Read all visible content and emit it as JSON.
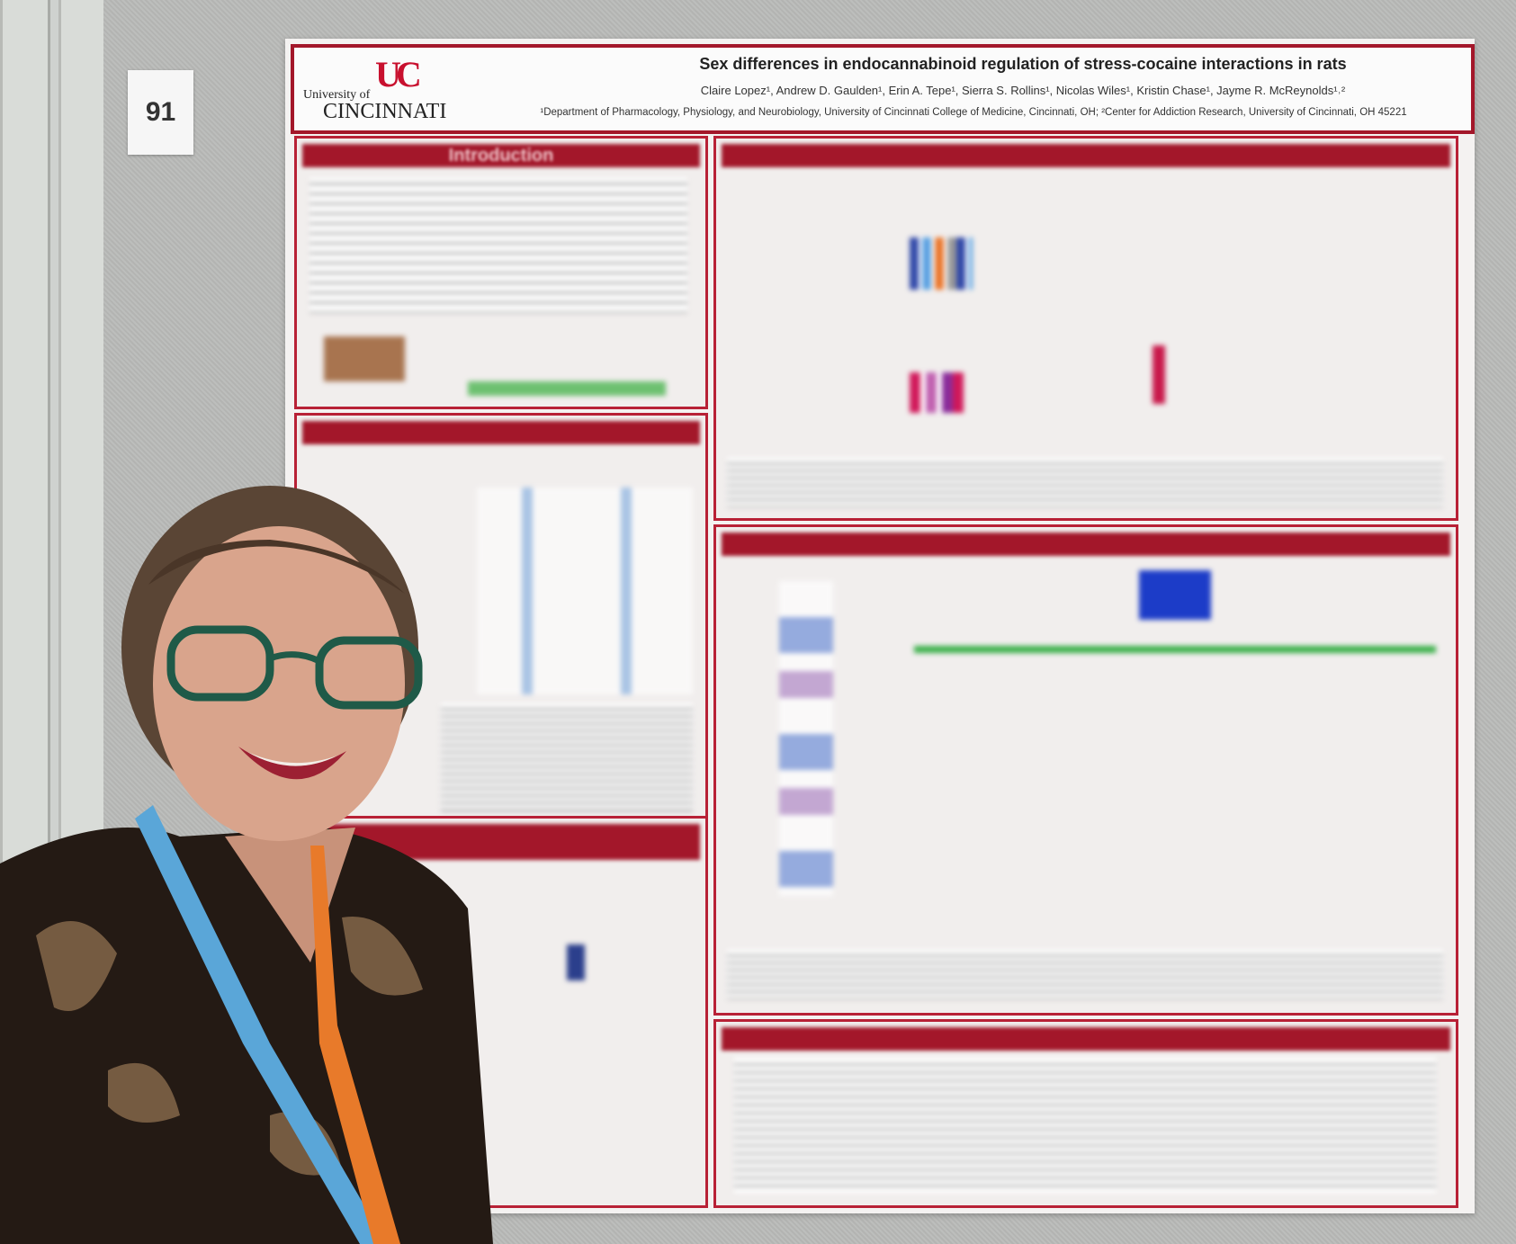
{
  "board_number": "91",
  "poster": {
    "logo": {
      "mark": "UC",
      "line1": "University of",
      "line2": "CINCINNATI"
    },
    "title": "Sex differences in endocannabinoid regulation of stress-cocaine interactions in rats",
    "authors": "Claire Lopez¹, Andrew D. Gaulden¹, Erin A. Tepe¹, Sierra S. Rollins¹, Nicolas Wiles¹, Kristin Chase¹, Jayme R. McReynolds¹˒²",
    "affiliations": "¹Department of Pharmacology, Physiology, and Neurobiology, University of Cincinnati College of Medicine, Cincinnati, OH; ²Center for Addiction Research, University of Cincinnati, OH 45221",
    "sections": {
      "introduction": "Introduction"
    }
  }
}
